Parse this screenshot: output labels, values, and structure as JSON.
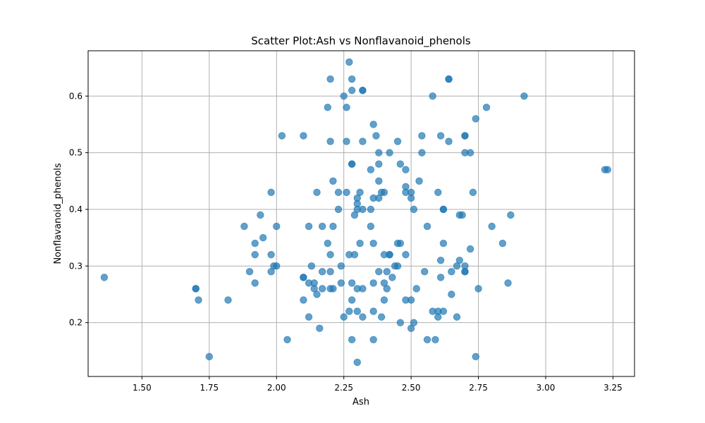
{
  "chart_data": {
    "type": "scatter",
    "title": "Scatter Plot:Ash vs Nonflavanoid_phenols",
    "xlabel": "Ash",
    "ylabel": "Nonflavanoid_phenols",
    "xlim": [
      1.3,
      3.33
    ],
    "ylim": [
      0.105,
      0.68
    ],
    "xticks": [
      1.5,
      1.75,
      2.0,
      2.25,
      2.5,
      2.75,
      3.0,
      3.25
    ],
    "xtick_labels": [
      "1.50",
      "1.75",
      "2.00",
      "2.25",
      "2.50",
      "2.75",
      "3.00",
      "3.25"
    ],
    "yticks": [
      0.2,
      0.3,
      0.4,
      0.5,
      0.6
    ],
    "ytick_labels": [
      "0.2",
      "0.3",
      "0.4",
      "0.5",
      "0.6"
    ],
    "grid": true,
    "color": "#1f77b4",
    "alpha": 0.7,
    "points": [
      [
        2.27,
        0.66
      ],
      [
        2.2,
        0.63
      ],
      [
        2.28,
        0.63
      ],
      [
        2.64,
        0.63
      ],
      [
        2.64,
        0.63
      ],
      [
        2.28,
        0.61
      ],
      [
        2.32,
        0.61
      ],
      [
        2.32,
        0.61
      ],
      [
        2.25,
        0.6
      ],
      [
        2.58,
        0.6
      ],
      [
        2.92,
        0.6
      ],
      [
        2.19,
        0.58
      ],
      [
        2.26,
        0.58
      ],
      [
        2.78,
        0.58
      ],
      [
        2.74,
        0.56
      ],
      [
        2.36,
        0.55
      ],
      [
        2.02,
        0.53
      ],
      [
        2.1,
        0.53
      ],
      [
        2.37,
        0.53
      ],
      [
        2.54,
        0.53
      ],
      [
        2.61,
        0.53
      ],
      [
        2.7,
        0.53
      ],
      [
        2.7,
        0.53
      ],
      [
        2.2,
        0.52
      ],
      [
        2.26,
        0.52
      ],
      [
        2.32,
        0.52
      ],
      [
        2.45,
        0.52
      ],
      [
        2.64,
        0.52
      ],
      [
        2.38,
        0.5
      ],
      [
        2.42,
        0.5
      ],
      [
        2.54,
        0.5
      ],
      [
        2.7,
        0.5
      ],
      [
        2.72,
        0.5
      ],
      [
        2.28,
        0.48
      ],
      [
        2.28,
        0.48
      ],
      [
        2.38,
        0.48
      ],
      [
        2.46,
        0.48
      ],
      [
        2.35,
        0.47
      ],
      [
        2.48,
        0.47
      ],
      [
        3.22,
        0.47
      ],
      [
        3.23,
        0.47
      ],
      [
        2.21,
        0.45
      ],
      [
        2.38,
        0.45
      ],
      [
        2.53,
        0.45
      ],
      [
        2.48,
        0.44
      ],
      [
        1.98,
        0.43
      ],
      [
        2.15,
        0.43
      ],
      [
        2.23,
        0.43
      ],
      [
        2.26,
        0.43
      ],
      [
        2.31,
        0.43
      ],
      [
        2.39,
        0.43
      ],
      [
        2.4,
        0.43
      ],
      [
        2.48,
        0.43
      ],
      [
        2.5,
        0.43
      ],
      [
        2.6,
        0.43
      ],
      [
        2.73,
        0.43
      ],
      [
        2.3,
        0.42
      ],
      [
        2.36,
        0.42
      ],
      [
        2.38,
        0.42
      ],
      [
        2.5,
        0.42
      ],
      [
        2.3,
        0.41
      ],
      [
        2.23,
        0.4
      ],
      [
        2.3,
        0.4
      ],
      [
        2.32,
        0.4
      ],
      [
        2.35,
        0.4
      ],
      [
        2.51,
        0.4
      ],
      [
        2.62,
        0.4
      ],
      [
        2.62,
        0.4
      ],
      [
        1.94,
        0.39
      ],
      [
        2.29,
        0.39
      ],
      [
        2.68,
        0.39
      ],
      [
        2.69,
        0.39
      ],
      [
        2.87,
        0.39
      ],
      [
        1.88,
        0.37
      ],
      [
        2.0,
        0.37
      ],
      [
        2.12,
        0.37
      ],
      [
        2.17,
        0.37
      ],
      [
        2.21,
        0.37
      ],
      [
        2.35,
        0.37
      ],
      [
        2.56,
        0.37
      ],
      [
        2.8,
        0.37
      ],
      [
        1.95,
        0.35
      ],
      [
        1.92,
        0.34
      ],
      [
        2.19,
        0.34
      ],
      [
        2.31,
        0.34
      ],
      [
        2.36,
        0.34
      ],
      [
        2.45,
        0.34
      ],
      [
        2.46,
        0.34
      ],
      [
        2.62,
        0.34
      ],
      [
        2.84,
        0.34
      ],
      [
        2.72,
        0.33
      ],
      [
        1.92,
        0.32
      ],
      [
        1.98,
        0.32
      ],
      [
        2.2,
        0.32
      ],
      [
        2.27,
        0.32
      ],
      [
        2.29,
        0.32
      ],
      [
        2.4,
        0.32
      ],
      [
        2.42,
        0.32
      ],
      [
        2.42,
        0.32
      ],
      [
        2.48,
        0.32
      ],
      [
        2.61,
        0.31
      ],
      [
        2.68,
        0.31
      ],
      [
        1.99,
        0.3
      ],
      [
        2.0,
        0.3
      ],
      [
        2.13,
        0.3
      ],
      [
        2.24,
        0.3
      ],
      [
        2.44,
        0.3
      ],
      [
        2.45,
        0.3
      ],
      [
        2.67,
        0.3
      ],
      [
        2.7,
        0.3
      ],
      [
        1.9,
        0.29
      ],
      [
        1.98,
        0.29
      ],
      [
        2.17,
        0.29
      ],
      [
        2.2,
        0.29
      ],
      [
        2.38,
        0.29
      ],
      [
        2.41,
        0.29
      ],
      [
        2.55,
        0.29
      ],
      [
        2.65,
        0.29
      ],
      [
        2.7,
        0.29
      ],
      [
        2.7,
        0.29
      ],
      [
        1.36,
        0.28
      ],
      [
        2.1,
        0.28
      ],
      [
        2.1,
        0.28
      ],
      [
        2.43,
        0.28
      ],
      [
        2.61,
        0.28
      ],
      [
        1.92,
        0.27
      ],
      [
        2.12,
        0.27
      ],
      [
        2.14,
        0.27
      ],
      [
        2.24,
        0.27
      ],
      [
        2.28,
        0.27
      ],
      [
        2.36,
        0.27
      ],
      [
        2.4,
        0.27
      ],
      [
        2.86,
        0.27
      ],
      [
        1.7,
        0.26
      ],
      [
        1.7,
        0.26
      ],
      [
        2.14,
        0.26
      ],
      [
        2.17,
        0.26
      ],
      [
        2.2,
        0.26
      ],
      [
        2.21,
        0.26
      ],
      [
        2.3,
        0.26
      ],
      [
        2.32,
        0.26
      ],
      [
        2.41,
        0.26
      ],
      [
        2.52,
        0.26
      ],
      [
        2.75,
        0.26
      ],
      [
        2.15,
        0.25
      ],
      [
        2.65,
        0.25
      ],
      [
        1.71,
        0.24
      ],
      [
        1.82,
        0.24
      ],
      [
        2.1,
        0.24
      ],
      [
        2.28,
        0.24
      ],
      [
        2.4,
        0.24
      ],
      [
        2.48,
        0.24
      ],
      [
        2.5,
        0.24
      ],
      [
        2.27,
        0.22
      ],
      [
        2.3,
        0.22
      ],
      [
        2.36,
        0.22
      ],
      [
        2.58,
        0.22
      ],
      [
        2.6,
        0.22
      ],
      [
        2.62,
        0.22
      ],
      [
        2.12,
        0.21
      ],
      [
        2.25,
        0.21
      ],
      [
        2.32,
        0.21
      ],
      [
        2.39,
        0.21
      ],
      [
        2.6,
        0.21
      ],
      [
        2.67,
        0.21
      ],
      [
        2.46,
        0.2
      ],
      [
        2.51,
        0.2
      ],
      [
        2.16,
        0.19
      ],
      [
        2.5,
        0.19
      ],
      [
        2.04,
        0.17
      ],
      [
        2.28,
        0.17
      ],
      [
        2.36,
        0.17
      ],
      [
        2.56,
        0.17
      ],
      [
        2.59,
        0.17
      ],
      [
        1.75,
        0.14
      ],
      [
        2.74,
        0.14
      ],
      [
        2.3,
        0.13
      ]
    ]
  }
}
